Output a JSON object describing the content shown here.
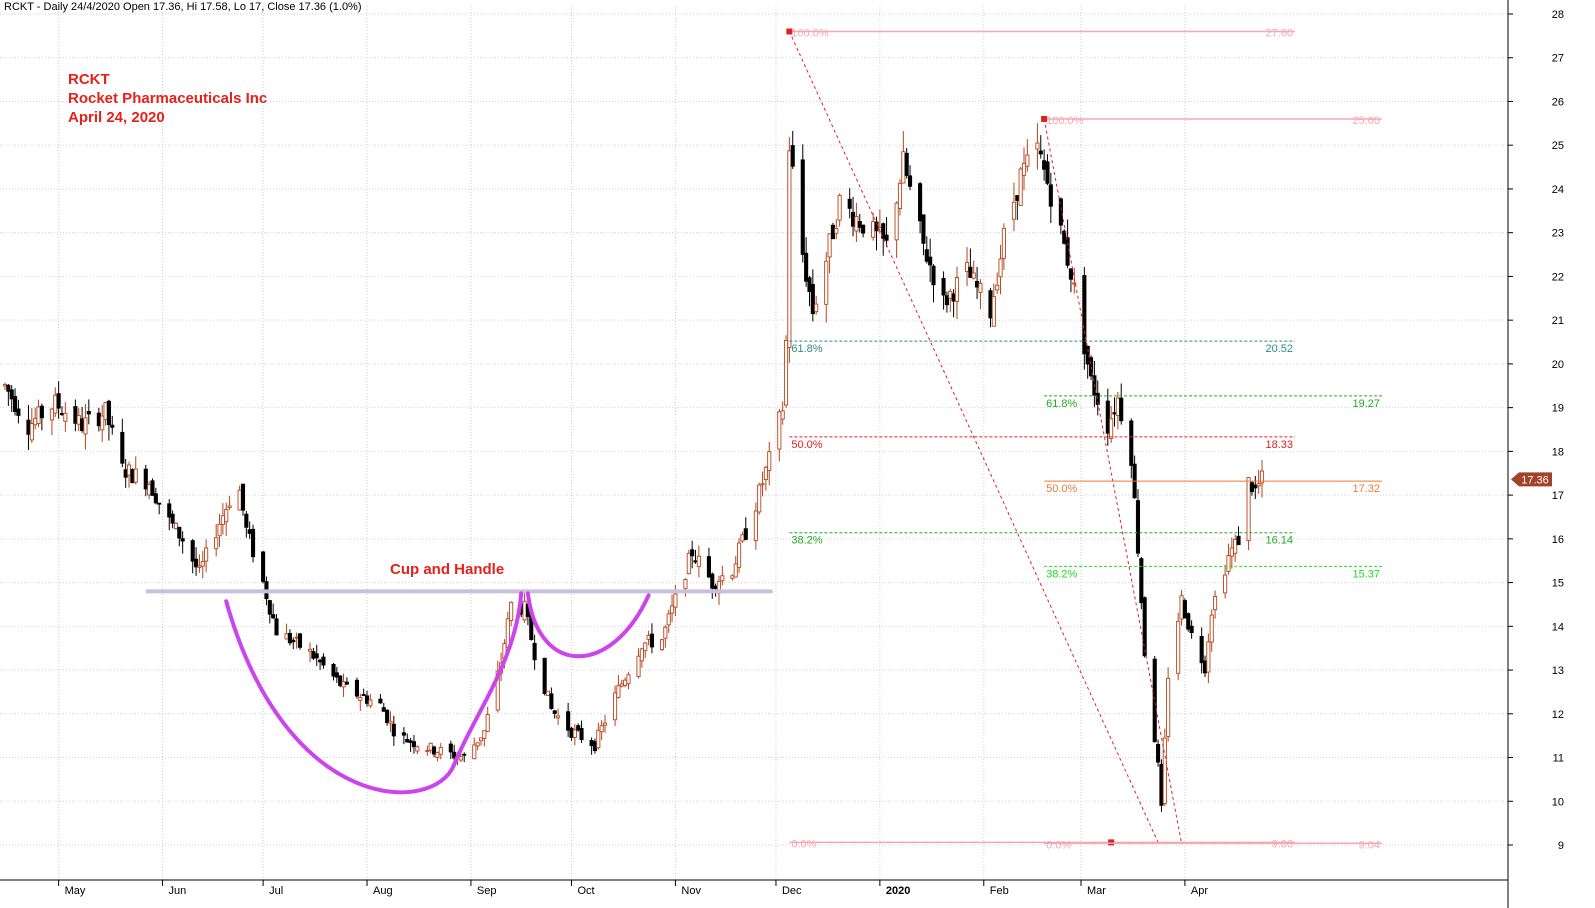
{
  "header": "RCKT - Daily 24/4/2020 Open 17.36, Hi 17.58, Lo 17, Close 17.36 (1.0%)",
  "title_block": {
    "ticker": "RCKT",
    "company": "Rocket Pharmaceuticals Inc",
    "date": "April 24, 2020"
  },
  "pattern_label": "Cup and Handle",
  "colors": {
    "up": "#b5451b",
    "down": "#000000",
    "text_red": "#e4221b",
    "cup": "#cc44ee",
    "neckline": "#c8c0dc",
    "fib_pink": "#f4a8b4",
    "fib_red": "#e02020",
    "fib_teal": "#2a8a8a",
    "fib_green": "#22aa22",
    "fib_lime": "#22dd22",
    "fib_orange": "#ee7a33",
    "last_price_bg": "#a0432a"
  },
  "chart_data": {
    "type": "candlestick",
    "title": "RCKT - Daily 24/4/2020",
    "x_range": [
      "2019-04-15",
      "2020-04-24"
    ],
    "y_axis": {
      "min": 9,
      "max": 28,
      "ticks": [
        9,
        10,
        11,
        12,
        13,
        14,
        15,
        16,
        17,
        18,
        19,
        20,
        21,
        22,
        23,
        24,
        25,
        26,
        27,
        28
      ],
      "side": "right"
    },
    "x_ticks": [
      {
        "label": "May",
        "date": "2019-05-01"
      },
      {
        "label": "Jun",
        "date": "2019-06-01"
      },
      {
        "label": "Jul",
        "date": "2019-07-01"
      },
      {
        "label": "Aug",
        "date": "2019-08-01"
      },
      {
        "label": "Sep",
        "date": "2019-09-01"
      },
      {
        "label": "Oct",
        "date": "2019-10-01"
      },
      {
        "label": "Nov",
        "date": "2019-11-01"
      },
      {
        "label": "Dec",
        "date": "2019-12-01"
      },
      {
        "label": "2020",
        "date": "2020-01-01",
        "bold": true
      },
      {
        "label": "Feb",
        "date": "2020-02-01"
      },
      {
        "label": "Mar",
        "date": "2020-03-01"
      },
      {
        "label": "Apr",
        "date": "2020-04-01"
      }
    ],
    "grid": true,
    "last_price": "17.36",
    "price_path": [
      [
        "2019-04-15",
        19.5
      ],
      [
        "2019-04-22",
        18.6
      ],
      [
        "2019-04-30",
        19.1
      ],
      [
        "2019-05-08",
        18.6
      ],
      [
        "2019-05-15",
        18.9
      ],
      [
        "2019-05-20",
        17.6
      ],
      [
        "2019-05-28",
        17.3
      ],
      [
        "2019-06-03",
        16.4
      ],
      [
        "2019-06-07",
        16.0
      ],
      [
        "2019-06-12",
        15.2
      ],
      [
        "2019-06-17",
        16.2
      ],
      [
        "2019-06-21",
        16.9
      ],
      [
        "2019-06-24",
        17.1
      ],
      [
        "2019-06-26",
        16.2
      ],
      [
        "2019-07-01",
        15.0
      ],
      [
        "2019-07-05",
        13.9
      ],
      [
        "2019-07-15",
        13.4
      ],
      [
        "2019-07-25",
        12.6
      ],
      [
        "2019-08-05",
        12.2
      ],
      [
        "2019-08-10",
        11.5
      ],
      [
        "2019-08-20",
        11.2
      ],
      [
        "2019-08-30",
        11.0
      ],
      [
        "2019-09-05",
        11.6
      ],
      [
        "2019-09-10",
        13.2
      ],
      [
        "2019-09-13",
        14.5
      ],
      [
        "2019-09-17",
        14.4
      ],
      [
        "2019-09-20",
        13.4
      ],
      [
        "2019-09-25",
        12.1
      ],
      [
        "2019-10-01",
        11.6
      ],
      [
        "2019-10-08",
        11.3
      ],
      [
        "2019-10-14",
        12.4
      ],
      [
        "2019-10-22",
        13.6
      ],
      [
        "2019-10-28",
        13.7
      ],
      [
        "2019-11-01",
        14.6
      ],
      [
        "2019-11-06",
        15.7
      ],
      [
        "2019-11-12",
        15.0
      ],
      [
        "2019-11-18",
        15.3
      ],
      [
        "2019-11-25",
        16.8
      ],
      [
        "2019-11-29",
        17.8
      ],
      [
        "2019-12-03",
        19.0
      ],
      [
        "2019-12-04",
        20.5
      ],
      [
        "2019-12-05",
        25.0
      ],
      [
        "2019-12-09",
        22.5
      ],
      [
        "2019-12-12",
        21.2
      ],
      [
        "2019-12-16",
        22.4
      ],
      [
        "2019-12-20",
        23.7
      ],
      [
        "2019-12-27",
        23.2
      ],
      [
        "2020-01-03",
        22.7
      ],
      [
        "2020-01-08",
        24.6
      ],
      [
        "2020-01-14",
        22.7
      ],
      [
        "2020-01-20",
        21.4
      ],
      [
        "2020-01-27",
        22.1
      ],
      [
        "2020-02-03",
        21.2
      ],
      [
        "2020-02-07",
        22.9
      ],
      [
        "2020-02-12",
        24.3
      ],
      [
        "2020-02-17",
        24.9
      ],
      [
        "2020-02-21",
        23.9
      ],
      [
        "2020-02-27",
        22.1
      ],
      [
        "2020-03-04",
        19.6
      ],
      [
        "2020-03-09",
        18.6
      ],
      [
        "2020-03-12",
        19.2
      ],
      [
        "2020-03-16",
        17.9
      ],
      [
        "2020-03-18",
        15.8
      ],
      [
        "2020-03-20",
        13.4
      ],
      [
        "2020-03-24",
        10.8
      ],
      [
        "2020-03-25",
        9.8
      ],
      [
        "2020-03-27",
        12.9
      ],
      [
        "2020-03-31",
        14.6
      ],
      [
        "2020-04-03",
        13.8
      ],
      [
        "2020-04-07",
        13.1
      ],
      [
        "2020-04-09",
        14.4
      ],
      [
        "2020-04-14",
        15.6
      ],
      [
        "2020-04-17",
        16.0
      ],
      [
        "2020-04-20",
        17.3
      ],
      [
        "2020-04-22",
        17.1
      ],
      [
        "2020-04-24",
        17.36
      ]
    ],
    "fib_retracements": [
      {
        "color": "#f4a8b4",
        "from": {
          "date": "2019-12-05",
          "price": 27.6
        },
        "to": {
          "date": "2020-03-24",
          "price": 9.06
        },
        "levels": [
          {
            "pct": "100.0%",
            "value": "27.60",
            "price": 27.6
          },
          {
            "pct": "0.0%",
            "value": "9.06",
            "price": 9.06
          }
        ]
      },
      {
        "color": "#f4a8b4",
        "from": {
          "date": "2020-02-19",
          "price": 25.6
        },
        "to": {
          "date": "2020-03-31",
          "price": 9.04
        },
        "levels": [
          {
            "pct": "100.0%",
            "value": "25.60",
            "price": 25.6
          },
          {
            "pct": "0.0%",
            "value": "9.04",
            "price": 9.04
          }
        ]
      }
    ],
    "fib_levels": [
      {
        "pct": "61.8%",
        "value": "20.52",
        "price": 20.52,
        "color": "#2a8a8a",
        "start": "2019-12-05"
      },
      {
        "pct": "61.8%",
        "value": "19.27",
        "price": 19.27,
        "color": "#22aa22",
        "start": "2020-02-19"
      },
      {
        "pct": "50.0%",
        "value": "18.33",
        "price": 18.33,
        "color": "#e02020",
        "start": "2019-12-05"
      },
      {
        "pct": "50.0%",
        "value": "17.32",
        "price": 17.32,
        "color": "#ee7a33",
        "start": "2020-02-19",
        "solid": true
      },
      {
        "pct": "38.2%",
        "value": "16.14",
        "price": 16.14,
        "color": "#22aa22",
        "start": "2019-12-05"
      },
      {
        "pct": "38.2%",
        "value": "15.37",
        "price": 15.37,
        "color": "#22dd22",
        "start": "2020-02-19"
      }
    ],
    "neckline": {
      "from": "2019-05-27",
      "to": "2019-11-30",
      "price": 14.8
    },
    "cup": {
      "left": "2019-06-20",
      "bottom": "2019-08-15",
      "bottom_price": 10.6,
      "right": "2019-09-16"
    },
    "handle": {
      "left": "2019-09-18",
      "bottom": "2019-10-01",
      "bottom_price": 13.3,
      "right": "2019-10-24"
    }
  }
}
